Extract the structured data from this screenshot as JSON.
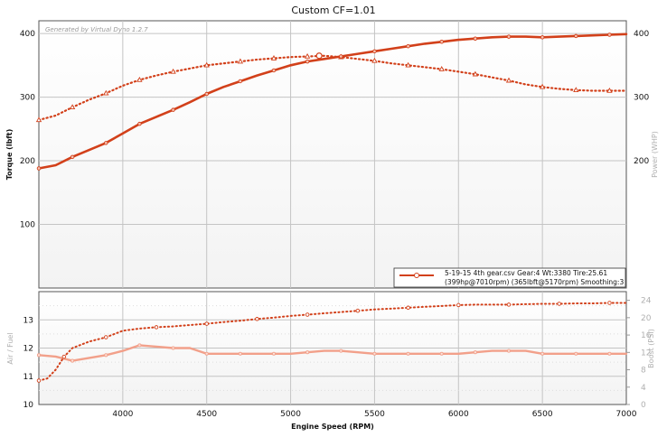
{
  "chart_data": {
    "type": "line",
    "title": "Custom CF=1.01",
    "watermark": "Generated by Virtual Dyno 1.2.7",
    "xlabel": "Engine Speed (RPM)",
    "xlim": [
      3500,
      7000
    ],
    "xticks": [
      "4000",
      "4500",
      "5000",
      "5500",
      "6000",
      "6500",
      "7000"
    ],
    "main": {
      "ylabel_left": "Torque (lbft)",
      "ylabel_right": "Power (WHP)",
      "ylim": [
        0,
        420
      ],
      "yticks_left": [
        "100",
        "200",
        "300",
        "400"
      ],
      "yticks_right": [
        "200",
        "300",
        "400"
      ],
      "series": [
        {
          "name": "Power (WHP)",
          "style": "solid",
          "color": "#d2401a",
          "x": [
            3500,
            3600,
            3700,
            3800,
            3900,
            4000,
            4100,
            4200,
            4300,
            4400,
            4500,
            4600,
            4700,
            4800,
            4900,
            5000,
            5100,
            5200,
            5300,
            5400,
            5500,
            5600,
            5700,
            5800,
            5900,
            6000,
            6100,
            6200,
            6300,
            6400,
            6500,
            6600,
            6700,
            6800,
            6900,
            7000
          ],
          "values": [
            188,
            193,
            206,
            217,
            228,
            243,
            258,
            269,
            280,
            292,
            305,
            316,
            325,
            334,
            342,
            350,
            356,
            360,
            364,
            368,
            372,
            376,
            380,
            384,
            387,
            390,
            392,
            394,
            395,
            395,
            394,
            395,
            396,
            397,
            398,
            399
          ]
        },
        {
          "name": "Torque (lbft)",
          "style": "dotted",
          "color": "#d2401a",
          "x": [
            3500,
            3600,
            3700,
            3800,
            3900,
            4000,
            4100,
            4200,
            4300,
            4400,
            4500,
            4600,
            4700,
            4800,
            4900,
            5000,
            5100,
            5200,
            5300,
            5400,
            5500,
            5600,
            5700,
            5800,
            5900,
            6000,
            6100,
            6200,
            6300,
            6400,
            6500,
            6600,
            6700,
            6800,
            6900,
            7000
          ],
          "values": [
            264,
            271,
            284,
            296,
            306,
            318,
            327,
            334,
            340,
            345,
            350,
            353,
            356,
            359,
            361,
            363,
            364,
            365,
            363,
            360,
            357,
            353,
            350,
            347,
            344,
            340,
            336,
            331,
            326,
            320,
            316,
            313,
            311,
            310,
            310,
            310
          ]
        }
      ],
      "peak_marker": {
        "rpm": 5170,
        "value": 365
      }
    },
    "lower": {
      "ylabel_left": "Air / Fuel",
      "ylabel_right": "Boost (PSI)",
      "afr_ylim": [
        10,
        14
      ],
      "boost_ylim": [
        0,
        26
      ],
      "yticks_left": [
        "10",
        "11",
        "12",
        "13"
      ],
      "yticks_right": [
        "0",
        "4",
        "8",
        "12",
        "16",
        "20",
        "24"
      ],
      "series": [
        {
          "name": "Air / Fuel",
          "style": "solid",
          "color": "#f2a08a",
          "x": [
            3500,
            3600,
            3700,
            3800,
            3900,
            4000,
            4100,
            4200,
            4300,
            4400,
            4500,
            4600,
            4700,
            4800,
            4900,
            5000,
            5100,
            5200,
            5300,
            5400,
            5500,
            5600,
            5700,
            5800,
            5900,
            6000,
            6100,
            6200,
            6300,
            6400,
            6500,
            6600,
            6700,
            6800,
            6900,
            7000
          ],
          "values": [
            11.75,
            11.7,
            11.55,
            11.65,
            11.75,
            11.9,
            12.1,
            12.05,
            12.0,
            12.0,
            11.8,
            11.8,
            11.8,
            11.8,
            11.8,
            11.8,
            11.85,
            11.9,
            11.9,
            11.85,
            11.8,
            11.8,
            11.8,
            11.8,
            11.8,
            11.8,
            11.85,
            11.9,
            11.9,
            11.9,
            11.8,
            11.8,
            11.8,
            11.8,
            11.8,
            11.8
          ]
        },
        {
          "name": "Boost (PSI)",
          "style": "dotted",
          "color": "#d2401a",
          "x": [
            3500,
            3550,
            3600,
            3650,
            3700,
            3800,
            3900,
            4000,
            4100,
            4200,
            4300,
            4400,
            4500,
            4600,
            4700,
            4800,
            4900,
            5000,
            5100,
            5200,
            5300,
            5400,
            5500,
            5600,
            5700,
            5800,
            5900,
            6000,
            6100,
            6200,
            6300,
            6400,
            6500,
            6600,
            6700,
            6800,
            6900,
            7000
          ],
          "values": [
            5.5,
            6.0,
            8.0,
            11.0,
            13.0,
            14.5,
            15.5,
            17.0,
            17.5,
            17.8,
            18.0,
            18.3,
            18.6,
            19.0,
            19.3,
            19.7,
            20.0,
            20.4,
            20.7,
            21.0,
            21.3,
            21.6,
            21.9,
            22.1,
            22.3,
            22.5,
            22.7,
            22.9,
            23.0,
            23.0,
            23.0,
            23.1,
            23.2,
            23.2,
            23.3,
            23.3,
            23.4,
            23.4
          ]
        }
      ]
    },
    "legend": {
      "line1": "5-19-15 4th gear.csv Gear:4 Wt:3380 Tire:25.61",
      "line2": "(399hp@7010rpm) (365lbft@5170rpm) Smoothing:3",
      "placement": "bottom-right of main plot"
    }
  }
}
